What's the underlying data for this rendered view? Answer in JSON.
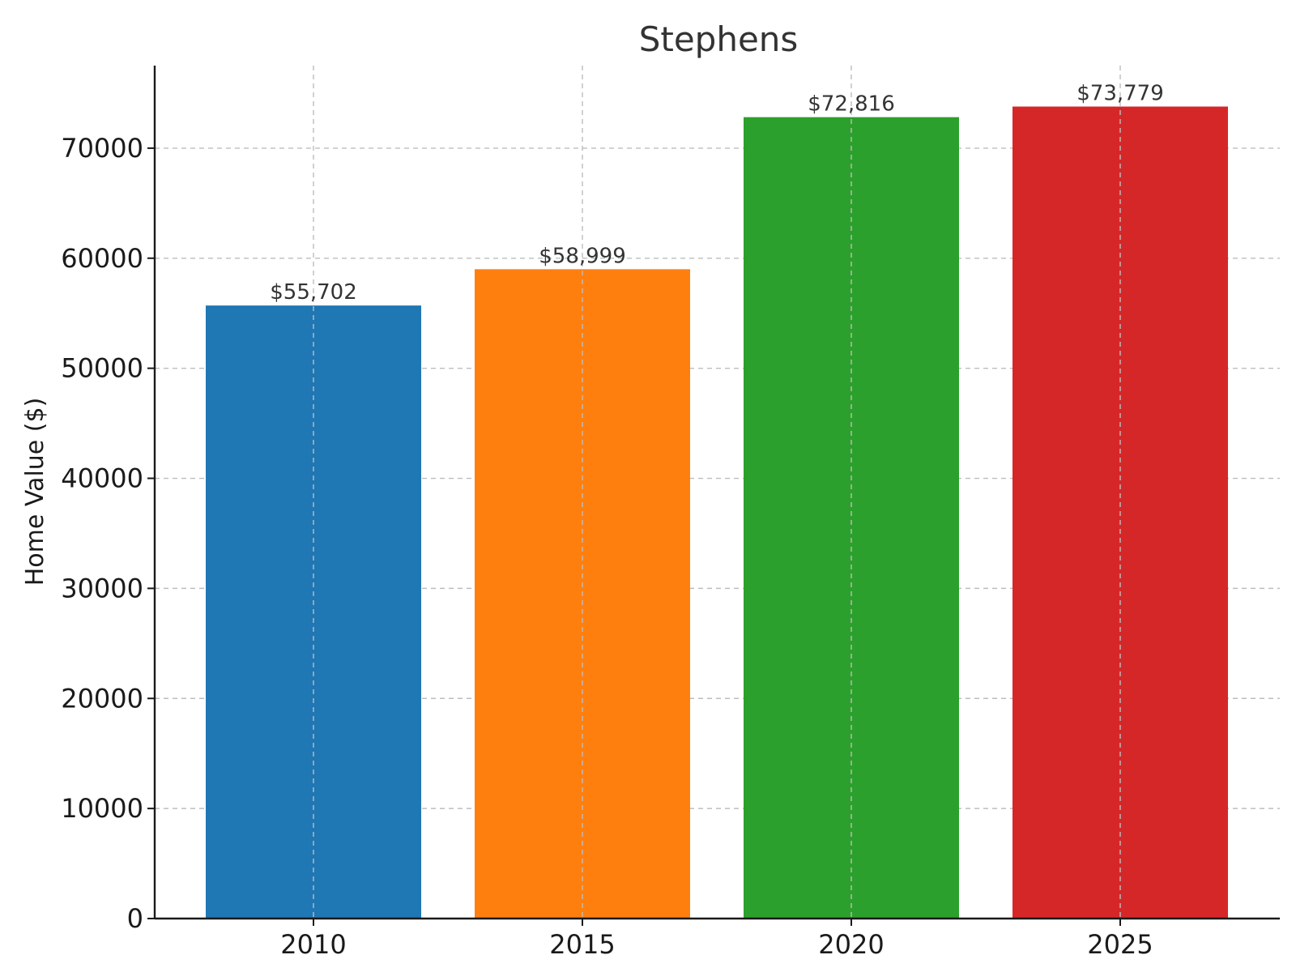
{
  "chart_data": {
    "type": "bar",
    "title": "Stephens",
    "xlabel": "",
    "ylabel": "Home Value ($)",
    "categories": [
      "2010",
      "2015",
      "2020",
      "2025"
    ],
    "values": [
      55702,
      58999,
      72816,
      73779
    ],
    "value_labels": [
      "$55,702",
      "$58,999",
      "$72,816",
      "$73,779"
    ],
    "colors": [
      "#1f77b4",
      "#ff7f0e",
      "#2ca02c",
      "#d62728"
    ],
    "ylim": [
      0,
      77500
    ],
    "yticks": [
      0,
      10000,
      20000,
      30000,
      40000,
      50000,
      60000,
      70000
    ],
    "grid": true
  }
}
